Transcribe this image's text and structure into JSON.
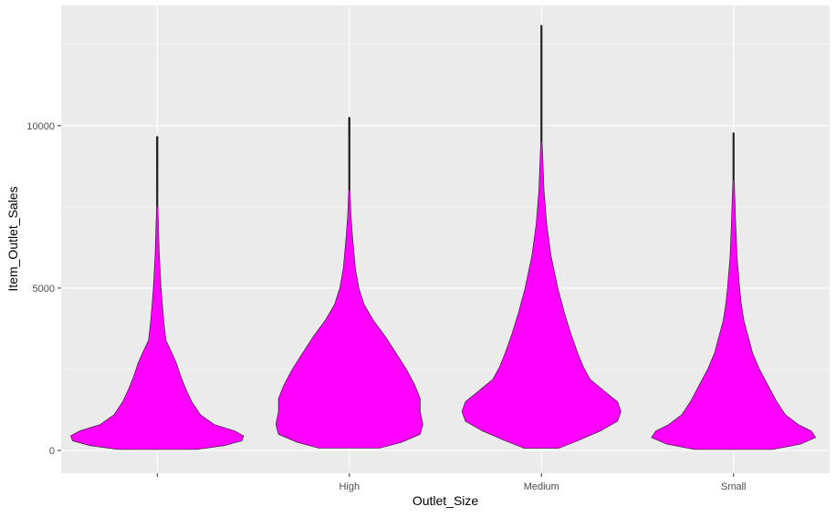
{
  "chart_data": {
    "type": "violin",
    "title": "",
    "xlabel": "Outlet_Size",
    "ylabel": "Item_Outlet_Sales",
    "categories": [
      "",
      "High",
      "Medium",
      "Small"
    ],
    "ylim": [
      -700,
      13700
    ],
    "yticks": [
      0,
      5000,
      10000
    ],
    "grid": true,
    "legend": "none",
    "fill_color": "#FF00FF",
    "outline_color": "#1a1a1a",
    "panel_background": "#EBEBEB",
    "grid_color": "#FFFFFF",
    "violins": [
      {
        "category": "",
        "min": 33,
        "max": 9665,
        "thin_line_above": 7500,
        "profile": [
          [
            33,
            0.45
          ],
          [
            150,
            0.78
          ],
          [
            300,
            0.98
          ],
          [
            450,
            1.0
          ],
          [
            600,
            0.9
          ],
          [
            800,
            0.66
          ],
          [
            1100,
            0.5
          ],
          [
            1500,
            0.4
          ],
          [
            1900,
            0.33
          ],
          [
            2300,
            0.27
          ],
          [
            2700,
            0.22
          ],
          [
            3000,
            0.17
          ],
          [
            3400,
            0.1
          ],
          [
            4000,
            0.075
          ],
          [
            4500,
            0.06
          ],
          [
            5000,
            0.045
          ],
          [
            6000,
            0.025
          ],
          [
            6800,
            0.015
          ],
          [
            7500,
            0.008
          ]
        ]
      },
      {
        "category": "High",
        "min": 73,
        "max": 10256,
        "thin_line_above": 8000,
        "profile": [
          [
            73,
            0.35
          ],
          [
            250,
            0.6
          ],
          [
            500,
            0.82
          ],
          [
            800,
            0.85
          ],
          [
            1200,
            0.82
          ],
          [
            1600,
            0.82
          ],
          [
            2000,
            0.76
          ],
          [
            2500,
            0.66
          ],
          [
            3000,
            0.54
          ],
          [
            3500,
            0.42
          ],
          [
            4000,
            0.28
          ],
          [
            4500,
            0.17
          ],
          [
            5000,
            0.11
          ],
          [
            5600,
            0.07
          ],
          [
            6500,
            0.04
          ],
          [
            7200,
            0.02
          ],
          [
            8000,
            0.008
          ]
        ]
      },
      {
        "category": "Medium",
        "min": 69,
        "max": 13087,
        "thin_line_above": 9500,
        "profile": [
          [
            69,
            0.2
          ],
          [
            300,
            0.42
          ],
          [
            600,
            0.68
          ],
          [
            900,
            0.88
          ],
          [
            1200,
            0.92
          ],
          [
            1500,
            0.88
          ],
          [
            1800,
            0.74
          ],
          [
            2200,
            0.56
          ],
          [
            2600,
            0.48
          ],
          [
            3000,
            0.42
          ],
          [
            3600,
            0.34
          ],
          [
            4200,
            0.27
          ],
          [
            5000,
            0.19
          ],
          [
            6000,
            0.11
          ],
          [
            7000,
            0.06
          ],
          [
            8000,
            0.03
          ],
          [
            9000,
            0.015
          ],
          [
            9500,
            0.008
          ]
        ]
      },
      {
        "category": "Small",
        "min": 34,
        "max": 9779,
        "thin_line_above": 8300,
        "profile": [
          [
            34,
            0.45
          ],
          [
            200,
            0.78
          ],
          [
            400,
            0.95
          ],
          [
            600,
            0.9
          ],
          [
            800,
            0.75
          ],
          [
            1100,
            0.6
          ],
          [
            1500,
            0.5
          ],
          [
            2000,
            0.4
          ],
          [
            2500,
            0.3
          ],
          [
            3000,
            0.22
          ],
          [
            3500,
            0.17
          ],
          [
            4000,
            0.12
          ],
          [
            4500,
            0.09
          ],
          [
            5000,
            0.07
          ],
          [
            6000,
            0.04
          ],
          [
            7000,
            0.025
          ],
          [
            8000,
            0.012
          ],
          [
            8300,
            0.008
          ]
        ]
      }
    ]
  }
}
